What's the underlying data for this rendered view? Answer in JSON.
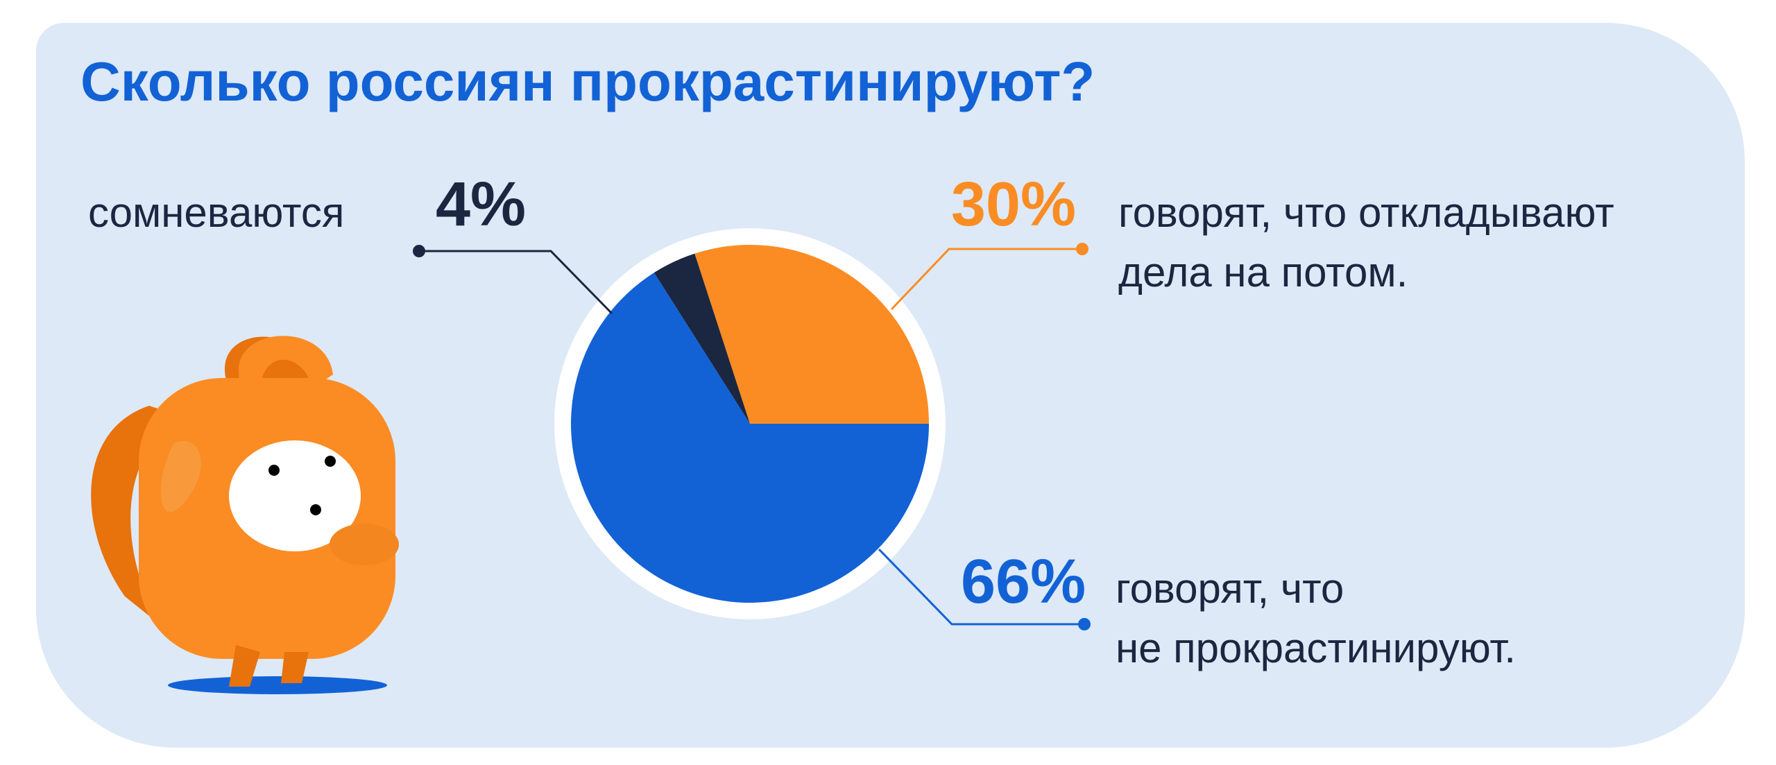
{
  "chart_data": {
    "type": "pie",
    "title": "Сколько россиян прокрастинируют?",
    "categories": [
      "сомневаются",
      "говорят, что откладывают\nдела на потом.",
      "говорят, что\nне прокрастинируют."
    ],
    "values": [
      4,
      30,
      66
    ],
    "value_labels": [
      "4%",
      "30%",
      "66%"
    ],
    "colors": [
      "#1b2640",
      "#fb8c23",
      "#1262d6"
    ]
  }
}
